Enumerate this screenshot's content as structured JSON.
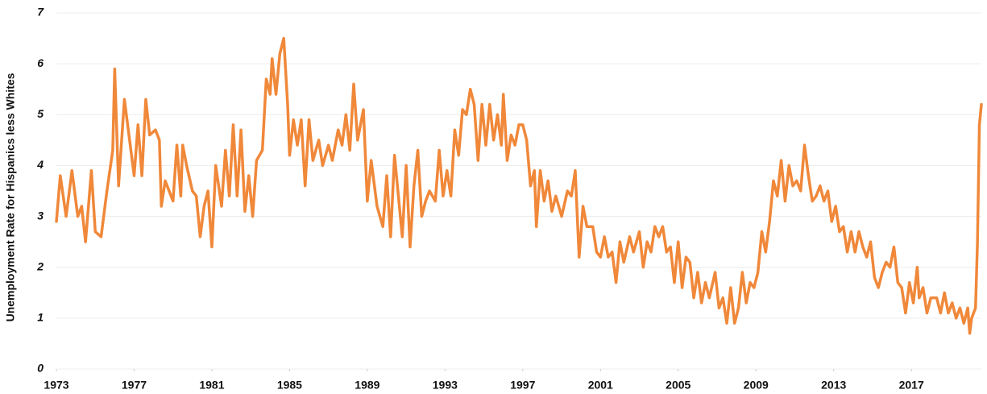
{
  "chart_data": {
    "type": "line",
    "y_label": "Unemployment Rate for Hispanics less Whites",
    "xlim": [
      1973,
      2020.6
    ],
    "xticks": [
      1973,
      1977,
      1981,
      1985,
      1989,
      1993,
      1997,
      2001,
      2005,
      2009,
      2013,
      2017
    ],
    "ylim": [
      0,
      7
    ],
    "yticks": [
      0,
      1,
      2,
      3,
      4,
      5,
      6,
      7
    ],
    "grid": true,
    "x": [
      1973.0,
      1973.2,
      1973.5,
      1973.8,
      1974.1,
      1974.3,
      1974.5,
      1974.8,
      1975.0,
      1975.3,
      1975.6,
      1975.9,
      1976.0,
      1976.2,
      1976.5,
      1976.7,
      1977.0,
      1977.2,
      1977.4,
      1977.6,
      1977.8,
      1978.1,
      1978.3,
      1978.4,
      1978.6,
      1978.8,
      1979.0,
      1979.2,
      1979.4,
      1979.5,
      1979.7,
      1980.0,
      1980.2,
      1980.4,
      1980.6,
      1980.8,
      1981.0,
      1981.2,
      1981.5,
      1981.7,
      1981.9,
      1982.1,
      1982.3,
      1982.5,
      1982.7,
      1982.9,
      1983.1,
      1983.3,
      1983.6,
      1983.8,
      1984.0,
      1984.1,
      1984.3,
      1984.5,
      1984.7,
      1984.9,
      1985.0,
      1985.2,
      1985.4,
      1985.6,
      1985.8,
      1986.0,
      1986.2,
      1986.5,
      1986.7,
      1987.0,
      1987.2,
      1987.5,
      1987.7,
      1987.9,
      1988.1,
      1988.3,
      1988.5,
      1988.8,
      1989.0,
      1989.2,
      1989.5,
      1989.8,
      1990.0,
      1990.2,
      1990.4,
      1990.6,
      1990.8,
      1991.0,
      1991.2,
      1991.4,
      1991.6,
      1991.8,
      1992.0,
      1992.2,
      1992.5,
      1992.7,
      1992.9,
      1993.1,
      1993.3,
      1993.5,
      1993.7,
      1993.9,
      1994.1,
      1994.3,
      1994.5,
      1994.7,
      1994.9,
      1995.1,
      1995.3,
      1995.5,
      1995.7,
      1995.9,
      1996.0,
      1996.2,
      1996.4,
      1996.6,
      1996.8,
      1997.0,
      1997.2,
      1997.4,
      1997.6,
      1997.7,
      1997.9,
      1998.1,
      1998.3,
      1998.5,
      1998.7,
      1999.0,
      1999.3,
      1999.5,
      1999.7,
      1999.9,
      2000.1,
      2000.3,
      2000.6,
      2000.8,
      2001.0,
      2001.2,
      2001.4,
      2001.6,
      2001.8,
      2002.0,
      2002.2,
      2002.5,
      2002.7,
      2003.0,
      2003.2,
      2003.4,
      2003.6,
      2003.8,
      2004.0,
      2004.2,
      2004.4,
      2004.6,
      2004.8,
      2005.0,
      2005.2,
      2005.4,
      2005.6,
      2005.8,
      2006.0,
      2006.2,
      2006.4,
      2006.6,
      2006.9,
      2007.1,
      2007.3,
      2007.5,
      2007.7,
      2007.9,
      2008.1,
      2008.3,
      2008.5,
      2008.7,
      2008.9,
      2009.1,
      2009.3,
      2009.5,
      2009.7,
      2009.9,
      2010.1,
      2010.3,
      2010.5,
      2010.7,
      2010.9,
      2011.1,
      2011.3,
      2011.5,
      2011.7,
      2011.9,
      2012.1,
      2012.3,
      2012.5,
      2012.7,
      2012.9,
      2013.1,
      2013.3,
      2013.5,
      2013.7,
      2013.9,
      2014.1,
      2014.3,
      2014.5,
      2014.7,
      2014.9,
      2015.1,
      2015.3,
      2015.5,
      2015.7,
      2015.9,
      2016.1,
      2016.3,
      2016.5,
      2016.7,
      2016.9,
      2017.1,
      2017.3,
      2017.4,
      2017.6,
      2017.8,
      2018.0,
      2018.3,
      2018.5,
      2018.7,
      2018.9,
      2019.1,
      2019.3,
      2019.5,
      2019.7,
      2019.9,
      2020.0,
      2020.1,
      2020.3,
      2020.4,
      2020.5,
      2020.6
    ],
    "series": [
      {
        "name": "Unemployment Rate for Hispanics less Whites",
        "color": "#f0883a",
        "values": [
          2.9,
          3.8,
          3.0,
          3.9,
          3.0,
          3.2,
          2.5,
          3.9,
          2.7,
          2.6,
          3.5,
          4.3,
          5.9,
          3.6,
          5.3,
          4.7,
          3.8,
          4.8,
          3.8,
          5.3,
          4.6,
          4.7,
          4.5,
          3.2,
          3.7,
          3.5,
          3.3,
          4.4,
          3.4,
          4.4,
          4.0,
          3.5,
          3.4,
          2.6,
          3.2,
          3.5,
          2.4,
          4.0,
          3.2,
          4.3,
          3.4,
          4.8,
          3.4,
          4.7,
          3.1,
          3.8,
          3.0,
          4.1,
          4.3,
          5.7,
          5.4,
          6.1,
          5.4,
          6.2,
          6.5,
          5.2,
          4.2,
          4.9,
          4.4,
          4.9,
          3.6,
          4.9,
          4.1,
          4.5,
          4.0,
          4.4,
          4.1,
          4.7,
          4.4,
          5.0,
          4.3,
          5.6,
          4.5,
          5.1,
          3.3,
          4.1,
          3.2,
          2.8,
          3.8,
          2.6,
          4.2,
          3.4,
          2.6,
          4.0,
          2.4,
          3.6,
          4.3,
          3.0,
          3.3,
          3.5,
          3.3,
          4.3,
          3.4,
          3.9,
          3.4,
          4.7,
          4.2,
          5.1,
          5.0,
          5.5,
          5.2,
          4.1,
          5.2,
          4.4,
          5.2,
          4.5,
          5.0,
          4.4,
          5.4,
          4.1,
          4.6,
          4.4,
          4.8,
          4.8,
          4.5,
          3.6,
          3.9,
          2.8,
          3.9,
          3.3,
          3.7,
          3.1,
          3.4,
          3.0,
          3.5,
          3.4,
          3.9,
          2.2,
          3.2,
          2.8,
          2.8,
          2.3,
          2.2,
          2.6,
          2.2,
          2.3,
          1.7,
          2.5,
          2.1,
          2.6,
          2.3,
          2.7,
          2.0,
          2.5,
          2.3,
          2.8,
          2.6,
          2.8,
          2.3,
          2.4,
          1.7,
          2.5,
          1.6,
          2.2,
          2.1,
          1.4,
          1.9,
          1.3,
          1.7,
          1.4,
          1.9,
          1.2,
          1.4,
          0.9,
          1.6,
          0.9,
          1.2,
          1.9,
          1.3,
          1.7,
          1.6,
          1.9,
          2.7,
          2.3,
          2.9,
          3.7,
          3.4,
          4.1,
          3.3,
          4.0,
          3.6,
          3.7,
          3.5,
          4.4,
          3.8,
          3.3,
          3.4,
          3.6,
          3.3,
          3.5,
          2.9,
          3.2,
          2.7,
          2.8,
          2.3,
          2.7,
          2.3,
          2.7,
          2.4,
          2.2,
          2.5,
          1.8,
          1.6,
          1.9,
          2.1,
          2.0,
          2.4,
          1.7,
          1.6,
          1.1,
          1.7,
          1.3,
          2.0,
          1.4,
          1.6,
          1.1,
          1.4,
          1.4,
          1.1,
          1.5,
          1.1,
          1.3,
          1.0,
          1.2,
          0.9,
          1.2,
          0.7,
          1.0,
          1.2,
          2.5,
          4.8,
          5.2
        ]
      }
    ]
  }
}
